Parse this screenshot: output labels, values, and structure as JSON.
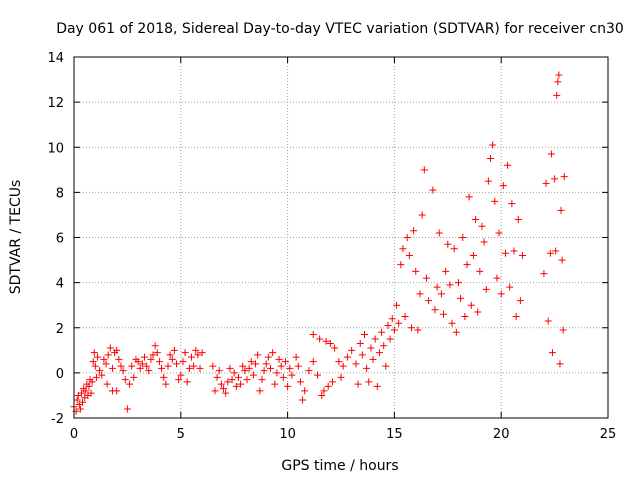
{
  "chart_data": {
    "type": "scatter",
    "title": "Day 061 of 2018, Sidereal Day-to-day VTEC variation (SDTVAR) for receiver cn30",
    "xlabel": "GPS time / hours",
    "ylabel": "SDTVAR / TECUs",
    "xlim": [
      0,
      25
    ],
    "ylim": [
      -2,
      14
    ],
    "xticks": [
      0,
      5,
      10,
      15,
      20,
      25
    ],
    "yticks": [
      -2,
      0,
      2,
      4,
      6,
      8,
      10,
      12,
      14
    ],
    "x_tick_labels": [
      "0",
      "5",
      "10",
      "15",
      "20",
      "25"
    ],
    "y_tick_labels": [
      "-2",
      "0",
      "2",
      "4",
      "6",
      "8",
      "10",
      "12",
      "14"
    ],
    "grid": true,
    "marker": "+",
    "color": "#ff0000",
    "series": [
      {
        "name": "SDTVAR",
        "points": [
          [
            0.0,
            -1.5
          ],
          [
            0.1,
            -1.7
          ],
          [
            0.15,
            -1.2
          ],
          [
            0.2,
            -1.0
          ],
          [
            0.25,
            -1.4
          ],
          [
            0.3,
            -1.6
          ],
          [
            0.35,
            -0.9
          ],
          [
            0.4,
            -1.3
          ],
          [
            0.45,
            -0.7
          ],
          [
            0.5,
            -1.1
          ],
          [
            0.55,
            -0.8
          ],
          [
            0.6,
            -0.5
          ],
          [
            0.65,
            -1.0
          ],
          [
            0.7,
            -0.6
          ],
          [
            0.75,
            -0.3
          ],
          [
            0.8,
            -0.9
          ],
          [
            0.85,
            -0.4
          ],
          [
            0.9,
            0.5
          ],
          [
            0.95,
            0.9
          ],
          [
            1.0,
            0.3
          ],
          [
            1.05,
            -0.2
          ],
          [
            1.1,
            0.7
          ],
          [
            1.2,
            0.1
          ],
          [
            1.3,
            -0.1
          ],
          [
            1.4,
            0.6
          ],
          [
            1.5,
            0.4
          ],
          [
            1.55,
            -0.5
          ],
          [
            1.6,
            0.8
          ],
          [
            1.7,
            1.1
          ],
          [
            1.8,
            0.2
          ],
          [
            1.9,
            0.9
          ],
          [
            2.0,
            1.0
          ],
          [
            2.1,
            0.6
          ],
          [
            2.2,
            0.3
          ],
          [
            2.0,
            -0.8
          ],
          [
            1.8,
            -0.8
          ],
          [
            2.3,
            0.1
          ],
          [
            2.4,
            -0.3
          ],
          [
            2.5,
            -1.6
          ],
          [
            2.6,
            -0.5
          ],
          [
            2.7,
            0.3
          ],
          [
            2.8,
            -0.2
          ],
          [
            2.9,
            0.6
          ],
          [
            3.0,
            0.5
          ],
          [
            3.1,
            0.2
          ],
          [
            3.2,
            0.4
          ],
          [
            3.3,
            0.7
          ],
          [
            3.4,
            0.3
          ],
          [
            3.5,
            0.1
          ],
          [
            3.6,
            0.6
          ],
          [
            3.7,
            0.8
          ],
          [
            3.8,
            1.2
          ],
          [
            3.9,
            0.9
          ],
          [
            4.0,
            0.5
          ],
          [
            4.1,
            0.2
          ],
          [
            4.2,
            -0.2
          ],
          [
            4.3,
            -0.5
          ],
          [
            4.4,
            0.3
          ],
          [
            4.5,
            0.8
          ],
          [
            4.6,
            0.6
          ],
          [
            4.7,
            1.0
          ],
          [
            4.8,
            0.4
          ],
          [
            4.9,
            -0.3
          ],
          [
            5.0,
            -0.1
          ],
          [
            5.1,
            0.5
          ],
          [
            5.2,
            0.9
          ],
          [
            5.3,
            -0.4
          ],
          [
            5.4,
            0.2
          ],
          [
            5.5,
            0.7
          ],
          [
            5.6,
            0.3
          ],
          [
            5.7,
            1.0
          ],
          [
            5.8,
            0.8
          ],
          [
            5.9,
            0.2
          ],
          [
            6.0,
            0.9
          ],
          [
            6.5,
            0.3
          ],
          [
            6.6,
            -0.8
          ],
          [
            6.7,
            -0.2
          ],
          [
            6.8,
            0.1
          ],
          [
            6.9,
            -0.5
          ],
          [
            7.0,
            -0.7
          ],
          [
            7.1,
            -0.9
          ],
          [
            7.2,
            -0.4
          ],
          [
            7.3,
            0.2
          ],
          [
            7.4,
            -0.3
          ],
          [
            7.5,
            0.0
          ],
          [
            7.6,
            -0.6
          ],
          [
            7.7,
            -0.2
          ],
          [
            7.8,
            -0.5
          ],
          [
            7.9,
            0.3
          ],
          [
            8.0,
            0.1
          ],
          [
            8.1,
            -0.3
          ],
          [
            8.2,
            0.2
          ],
          [
            8.3,
            0.5
          ],
          [
            8.4,
            -0.1
          ],
          [
            8.5,
            0.4
          ],
          [
            8.6,
            0.8
          ],
          [
            8.7,
            -0.8
          ],
          [
            8.8,
            -0.3
          ],
          [
            8.9,
            0.1
          ],
          [
            9.0,
            0.4
          ],
          [
            9.1,
            0.7
          ],
          [
            9.2,
            0.2
          ],
          [
            9.3,
            0.9
          ],
          [
            9.4,
            -0.5
          ],
          [
            9.5,
            0.0
          ],
          [
            9.6,
            0.6
          ],
          [
            9.7,
            0.3
          ],
          [
            9.8,
            -0.2
          ],
          [
            9.9,
            0.5
          ],
          [
            10.0,
            -0.6
          ],
          [
            10.1,
            0.2
          ],
          [
            10.2,
            -0.1
          ],
          [
            10.4,
            0.7
          ],
          [
            10.5,
            0.3
          ],
          [
            10.6,
            -0.4
          ],
          [
            10.7,
            -1.2
          ],
          [
            10.8,
            -0.8
          ],
          [
            11.0,
            0.1
          ],
          [
            11.2,
            0.5
          ],
          [
            11.4,
            -0.1
          ],
          [
            11.2,
            1.7
          ],
          [
            11.5,
            1.5
          ],
          [
            11.6,
            -1.0
          ],
          [
            11.7,
            -0.8
          ],
          [
            11.8,
            1.4
          ],
          [
            11.9,
            -0.6
          ],
          [
            12.0,
            1.3
          ],
          [
            12.1,
            -0.4
          ],
          [
            12.2,
            1.1
          ],
          [
            12.4,
            0.5
          ],
          [
            12.5,
            -0.2
          ],
          [
            12.6,
            0.3
          ],
          [
            12.8,
            0.7
          ],
          [
            13.0,
            1.0
          ],
          [
            13.2,
            0.4
          ],
          [
            13.3,
            -0.5
          ],
          [
            13.4,
            1.3
          ],
          [
            13.5,
            0.8
          ],
          [
            13.6,
            1.7
          ],
          [
            13.7,
            0.2
          ],
          [
            13.8,
            -0.4
          ],
          [
            13.9,
            1.1
          ],
          [
            14.0,
            0.6
          ],
          [
            14.1,
            1.5
          ],
          [
            14.2,
            -0.6
          ],
          [
            14.3,
            0.9
          ],
          [
            14.4,
            1.8
          ],
          [
            14.5,
            1.2
          ],
          [
            14.6,
            0.3
          ],
          [
            14.7,
            2.1
          ],
          [
            14.8,
            1.5
          ],
          [
            14.9,
            2.4
          ],
          [
            15.0,
            1.9
          ],
          [
            15.1,
            3.0
          ],
          [
            15.2,
            2.2
          ],
          [
            15.3,
            4.8
          ],
          [
            15.4,
            5.5
          ],
          [
            15.5,
            2.5
          ],
          [
            15.6,
            6.0
          ],
          [
            15.7,
            5.2
          ],
          [
            15.8,
            2.0
          ],
          [
            15.9,
            6.3
          ],
          [
            16.0,
            4.5
          ],
          [
            16.1,
            1.9
          ],
          [
            16.2,
            3.5
          ],
          [
            16.3,
            7.0
          ],
          [
            16.4,
            9.0
          ],
          [
            16.5,
            4.2
          ],
          [
            16.6,
            3.2
          ],
          [
            16.8,
            8.1
          ],
          [
            16.9,
            2.8
          ],
          [
            17.0,
            3.8
          ],
          [
            17.1,
            6.2
          ],
          [
            17.2,
            3.5
          ],
          [
            17.3,
            2.6
          ],
          [
            17.4,
            4.5
          ],
          [
            17.5,
            5.7
          ],
          [
            17.6,
            3.9
          ],
          [
            17.7,
            2.2
          ],
          [
            17.8,
            5.5
          ],
          [
            17.9,
            1.8
          ],
          [
            18.0,
            4.0
          ],
          [
            18.1,
            3.3
          ],
          [
            18.2,
            6.0
          ],
          [
            18.3,
            2.5
          ],
          [
            18.4,
            4.8
          ],
          [
            18.5,
            7.8
          ],
          [
            18.6,
            3.0
          ],
          [
            18.7,
            5.2
          ],
          [
            18.8,
            6.8
          ],
          [
            18.9,
            2.7
          ],
          [
            19.0,
            4.5
          ],
          [
            19.1,
            6.5
          ],
          [
            19.2,
            5.8
          ],
          [
            19.3,
            3.7
          ],
          [
            19.4,
            8.5
          ],
          [
            19.5,
            9.5
          ],
          [
            19.6,
            10.1
          ],
          [
            19.7,
            7.6
          ],
          [
            19.8,
            4.2
          ],
          [
            19.9,
            6.2
          ],
          [
            20.0,
            3.5
          ],
          [
            20.1,
            8.3
          ],
          [
            20.2,
            5.3
          ],
          [
            20.3,
            9.2
          ],
          [
            20.4,
            3.8
          ],
          [
            20.5,
            7.5
          ],
          [
            20.6,
            5.4
          ],
          [
            20.7,
            2.5
          ],
          [
            20.8,
            6.8
          ],
          [
            20.9,
            3.2
          ],
          [
            21.0,
            5.2
          ],
          [
            22.0,
            4.4
          ],
          [
            22.1,
            8.4
          ],
          [
            22.2,
            2.3
          ],
          [
            22.3,
            5.3
          ],
          [
            22.35,
            9.7
          ],
          [
            22.4,
            0.9
          ],
          [
            22.5,
            8.6
          ],
          [
            22.55,
            5.4
          ],
          [
            22.6,
            12.3
          ],
          [
            22.65,
            12.9
          ],
          [
            22.7,
            13.2
          ],
          [
            22.75,
            0.4
          ],
          [
            22.8,
            7.2
          ],
          [
            22.85,
            5.0
          ],
          [
            22.9,
            1.9
          ],
          [
            22.95,
            8.7
          ]
        ]
      }
    ]
  }
}
